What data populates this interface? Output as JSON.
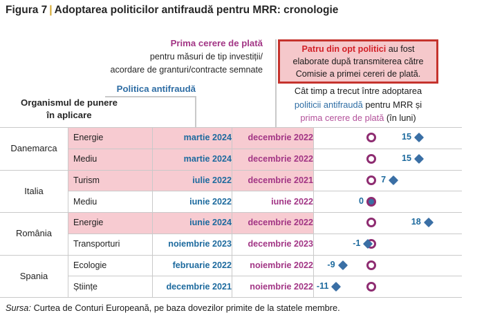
{
  "figure": {
    "label": "Figura 7",
    "separator": "|",
    "title": "Adoptarea politicilor antifraudă pentru MRR: cronologie"
  },
  "column_headers": {
    "implementing_body_line1": "Organismul de punere",
    "implementing_body_line2": "în aplicare",
    "policy": "Politica antifraudă",
    "first_payment_title": "Prima cerere de plată",
    "first_payment_sub1": "pentru măsuri de tip investiții/",
    "first_payment_sub2": "acordare de granturi/contracte semnate"
  },
  "callout": {
    "highlight": "Patru din opt politici",
    "rest": "au fost elaborate după transmiterea către Comisie a primei cereri de plată."
  },
  "axis_note": {
    "line1": "Cât timp a trecut între adoptarea",
    "policy_phrase": "politicii antifraudă",
    "line2_rest": "pentru MRR și",
    "payment_phrase": "prima cerere de plată",
    "line3_rest": "(în luni)"
  },
  "chart_data": {
    "type": "scatter",
    "title": "Cât timp a trecut între adoptarea politicii antifraudă pentru MRR și prima cerere de plată (în luni)",
    "unit": "luni",
    "x_axis": {
      "range_months": [
        -18,
        28
      ],
      "origin_months": 0,
      "gridlines": false
    },
    "marker_semantics": {
      "circle": "prima cerere de plată (luna 0, reper)",
      "diamond": "adoptarea politicii antifraudă (diferența în luni)"
    },
    "rows": [
      {
        "country": "Danemarca",
        "sector": "Energie",
        "policy_date": "martie 2024",
        "payment_date": "decembrie 2022",
        "months": 15,
        "highlighted": true
      },
      {
        "country": "Danemarca",
        "sector": "Mediu",
        "policy_date": "martie 2024",
        "payment_date": "decembrie 2022",
        "months": 15,
        "highlighted": true
      },
      {
        "country": "Italia",
        "sector": "Turism",
        "policy_date": "iulie 2022",
        "payment_date": "decembrie 2021",
        "months": 7,
        "highlighted": true
      },
      {
        "country": "Italia",
        "sector": "Mediu",
        "policy_date": "iunie 2022",
        "payment_date": "iunie 2022",
        "months": 0,
        "highlighted": false
      },
      {
        "country": "România",
        "sector": "Energie",
        "policy_date": "iunie 2024",
        "payment_date": "decembrie 2022",
        "months": 18,
        "highlighted": true
      },
      {
        "country": "România",
        "sector": "Transporturi",
        "policy_date": "noiembrie 2023",
        "payment_date": "decembrie 2023",
        "months": -1,
        "highlighted": false
      },
      {
        "country": "Spania",
        "sector": "Ecologie",
        "policy_date": "februarie 2022",
        "payment_date": "noiembrie 2022",
        "months": -9,
        "highlighted": false
      },
      {
        "country": "Spania",
        "sector": "Științe",
        "policy_date": "decembrie 2021",
        "payment_date": "noiembrie 2022",
        "months": -11,
        "highlighted": false
      }
    ]
  },
  "source": {
    "label": "Sursa:",
    "text": "Curtea de Conturi Europeană, pe baza dovezilor primite de la statele membre."
  },
  "colors": {
    "text": "#262626",
    "gold": "#d4a72c",
    "magenta": "#a23585",
    "magenta-light": "#b3509a",
    "blue": "#1d6a9e",
    "policy-blue": "#2e6da4",
    "diamond": "#3a6fa5",
    "circle": "#8e2c71",
    "row-highlight": "#f7cbd1",
    "callout-bg": "#f5c8cb",
    "red-border": "#c5332d",
    "red-text": "#d22027",
    "grid": "#c9c9c9"
  }
}
